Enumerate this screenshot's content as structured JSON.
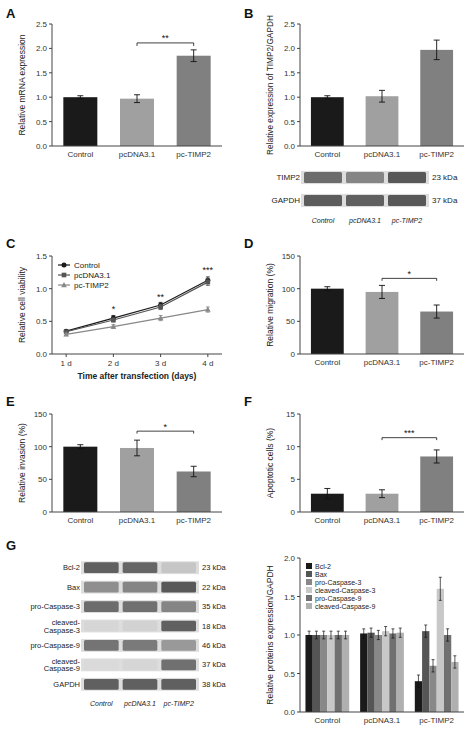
{
  "chart_data": [
    {
      "type": "bar",
      "title": "A",
      "categories": [
        "Control",
        "pcDNA3.1",
        "pc-TIMP2"
      ],
      "values": [
        1.0,
        0.97,
        1.85
      ],
      "errors": [
        0.03,
        0.08,
        0.12
      ],
      "colors": [
        "#1a1a1a",
        "#a0a0a0",
        "#808080"
      ],
      "ylabel": "Relative mRNA expression",
      "ylim": [
        0,
        2.5
      ],
      "yticks": [
        {
          "value": 0,
          "label": "0.0"
        },
        0.5,
        {
          "value": 1,
          "label": "1.0"
        },
        1.5,
        {
          "value": 2,
          "label": "2.0"
        },
        2.5
      ],
      "grid": false,
      "annotations": [
        {
          "text": "**",
          "x": [
            "pcDNA3.1",
            "pc-TIMP2"
          ],
          "y": 2.05
        }
      ]
    },
    {
      "type": "bar",
      "title": "B",
      "categories": [
        "Control",
        "pcDNA3.1",
        "pc-TIMP2"
      ],
      "values": [
        1.0,
        1.02,
        1.97
      ],
      "errors": [
        0.03,
        0.12,
        0.2
      ],
      "colors": [
        "#1a1a1a",
        "#a0a0a0",
        "#808080"
      ],
      "ylabel": "Relative expression of TIMP2/GAPDH",
      "ylim": [
        0,
        2.5
      ],
      "yticks": [
        {
          "value": 0,
          "label": "0.0"
        },
        0.5,
        {
          "value": 1,
          "label": "1.0"
        },
        1.5,
        {
          "value": 2,
          "label": "2.0"
        },
        2.5
      ],
      "grid": false
    },
    {
      "type": "heatmap",
      "x": [
        "Control",
        "pcDNA3.1",
        "pc-TIMP2"
      ],
      "y": [
        "TIMP2",
        "GAPDH"
      ],
      "values": [
        [
          0.72,
          0.6,
          0.82
        ],
        [
          0.8,
          0.78,
          0.82
        ]
      ],
      "annotations": [
        "23 kDa",
        "37 kDa"
      ]
    },
    {
      "type": "line",
      "title": "C",
      "x": [
        1,
        2,
        3,
        4
      ],
      "xlim": [
        0.7,
        4.3
      ],
      "xticks": [
        {
          "value": 1,
          "label": "1 d"
        },
        {
          "value": 2,
          "label": "2 d"
        },
        {
          "value": 3,
          "label": "3 d"
        },
        {
          "value": 4,
          "label": "4 d"
        }
      ],
      "xlabel": "Time after transfection (days)",
      "ylabel": "Relative cell viability",
      "ylim": [
        0,
        1.5
      ],
      "yticks": [
        {
          "value": 0,
          "label": "0.0"
        },
        0.5,
        {
          "value": 1,
          "label": "1.0"
        },
        1.5
      ],
      "grid": false,
      "legend": "upper left",
      "series": [
        {
          "name": "Control",
          "color": "#1a1a1a",
          "marker": "circle",
          "values": [
            0.35,
            0.55,
            0.75,
            1.13
          ],
          "errors": [
            0.02,
            0.04,
            0.04,
            0.05
          ]
        },
        {
          "name": "pcDNA3.1",
          "color": "#555555",
          "marker": "square",
          "values": [
            0.34,
            0.52,
            0.72,
            1.1
          ],
          "errors": [
            0.02,
            0.03,
            0.04,
            0.05
          ]
        },
        {
          "name": "pc-TIMP2",
          "color": "#888888",
          "marker": "triangle",
          "values": [
            0.3,
            0.42,
            0.55,
            0.68
          ],
          "errors": [
            0.02,
            0.03,
            0.04,
            0.04
          ]
        }
      ],
      "annotations": [
        {
          "text": "*",
          "x": 2,
          "y": 0.64
        },
        {
          "text": "**",
          "x": 3,
          "y": 0.82
        },
        {
          "text": "***",
          "x": 4,
          "y": 1.24
        }
      ]
    },
    {
      "type": "bar",
      "title": "D",
      "categories": [
        "Control",
        "pcDNA3.1",
        "pc-TIMP2"
      ],
      "values": [
        100,
        95,
        65
      ],
      "errors": [
        3,
        10,
        10
      ],
      "colors": [
        "#1a1a1a",
        "#a0a0a0",
        "#808080"
      ],
      "ylabel": "Relative migration (%)",
      "ylim": [
        0,
        150
      ],
      "yticks": [
        0,
        50,
        100,
        150
      ],
      "grid": false,
      "annotations": [
        {
          "text": "*",
          "x": [
            "pcDNA3.1",
            "pc-TIMP2"
          ],
          "y": 112
        }
      ]
    },
    {
      "type": "bar",
      "title": "E",
      "categories": [
        "Control",
        "pcDNA3.1",
        "pc-TIMP2"
      ],
      "values": [
        100,
        98,
        62
      ],
      "errors": [
        3,
        12,
        8
      ],
      "colors": [
        "#1a1a1a",
        "#a0a0a0",
        "#808080"
      ],
      "ylabel": "Relative invasion (%)",
      "ylim": [
        0,
        150
      ],
      "yticks": [
        0,
        50,
        100,
        150
      ],
      "grid": false,
      "annotations": [
        {
          "text": "*",
          "x": [
            "pcDNA3.1",
            "pc-TIMP2"
          ],
          "y": 120
        }
      ]
    },
    {
      "type": "bar",
      "title": "F",
      "categories": [
        "Control",
        "pcDNA3.1",
        "pc-TIMP2"
      ],
      "values": [
        2.8,
        2.8,
        8.5
      ],
      "errors": [
        0.8,
        0.6,
        1.0
      ],
      "colors": [
        "#1a1a1a",
        "#a0a0a0",
        "#808080"
      ],
      "ylabel": "Apoptotic cells (%)",
      "ylim": [
        0,
        15
      ],
      "yticks": [
        0,
        5,
        10,
        15
      ],
      "grid": false,
      "annotations": [
        {
          "text": "***",
          "x": [
            "pcDNA3.1",
            "pc-TIMP2"
          ],
          "y": 11.0
        }
      ]
    },
    {
      "type": "heatmap",
      "title": "G",
      "x": [
        "Control",
        "pcDNA3.1",
        "pc-TIMP2"
      ],
      "y": [
        "Bcl-2",
        "Bax",
        "pro-Caspase-3",
        "cleaved-\nCaspase-3",
        "pro-Caspase-9",
        "cleaved-\nCaspase-9",
        "GAPDH"
      ],
      "values": [
        [
          0.78,
          0.75,
          0.28
        ],
        [
          0.55,
          0.6,
          0.82
        ],
        [
          0.72,
          0.7,
          0.6
        ],
        [
          0.2,
          0.22,
          0.78
        ],
        [
          0.68,
          0.65,
          0.5
        ],
        [
          0.18,
          0.2,
          0.7
        ],
        [
          0.78,
          0.78,
          0.78
        ]
      ],
      "annotations": [
        "23 kDa",
        "22 kDa",
        "35 kDa",
        "18 kDa",
        "46 kDa",
        "37 kDa",
        "38 kDa"
      ]
    },
    {
      "type": "bar",
      "categories": [
        "Control",
        "pcDNA3.1",
        "pc-TIMP2"
      ],
      "series": [
        {
          "name": "Bcl-2",
          "color": "#1a1a1a",
          "values": [
            1.0,
            1.02,
            0.4
          ],
          "errors": [
            0.05,
            0.06,
            0.08
          ]
        },
        {
          "name": "Bax",
          "color": "#555555",
          "values": [
            1.0,
            1.03,
            1.05
          ],
          "errors": [
            0.05,
            0.06,
            0.08
          ]
        },
        {
          "name": "pro-Caspase-3",
          "color": "#888888",
          "values": [
            1.0,
            1.0,
            0.6
          ],
          "errors": [
            0.05,
            0.06,
            0.08
          ]
        },
        {
          "name": "cleaved-Caspase-3",
          "color": "#c8c8c8",
          "values": [
            1.0,
            1.05,
            1.6
          ],
          "errors": [
            0.05,
            0.06,
            0.15
          ]
        },
        {
          "name": "pro-Caspase-9",
          "color": "#707070",
          "values": [
            1.0,
            1.02,
            1.0
          ],
          "errors": [
            0.05,
            0.06,
            0.08
          ]
        },
        {
          "name": "cleaved-Caspase-9",
          "color": "#b0b0b0",
          "values": [
            1.0,
            1.03,
            0.65
          ],
          "errors": [
            0.05,
            0.06,
            0.08
          ]
        }
      ],
      "ylabel": "Relative proteins expression/GAPDH",
      "ylim": [
        0,
        2.0
      ],
      "yticks": [
        {
          "value": 0,
          "label": "0.0"
        },
        0.5,
        {
          "value": 1,
          "label": "1.0"
        },
        1.5,
        {
          "value": 2,
          "label": "2.0"
        }
      ],
      "grid": false,
      "legend": "upper left"
    }
  ]
}
